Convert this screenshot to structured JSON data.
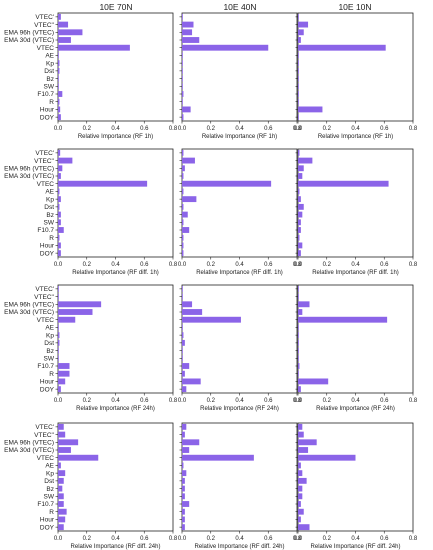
{
  "colors": {
    "bar": "#8b64e8",
    "axis": "#222222"
  },
  "column_titles": [
    "10E 70N",
    "10E 40N",
    "10E 10N"
  ],
  "x_ticks": [
    "0.0",
    "0.2",
    "0.4",
    "0.6",
    "0.8"
  ],
  "chart_data": [
    {
      "type": "bar",
      "orientation": "horizontal",
      "row_xlabel": "Relative Importance (RF 1h)",
      "xlim": [
        0,
        0.8
      ],
      "features": [
        "VTEC'",
        "VTEC''",
        "EMA 96h (VTEC)",
        "EMA 30d (VTEC)",
        "VTEC",
        "AE",
        "Kp",
        "Dst",
        "Bz",
        "SW",
        "F10.7",
        "R",
        "Hour",
        "DOY"
      ],
      "panels": [
        {
          "column": "10E 70N",
          "values": [
            0.02,
            0.07,
            0.17,
            0.09,
            0.5,
            0.005,
            0.01,
            0.01,
            0.005,
            0.005,
            0.03,
            0.01,
            0.015,
            0.02
          ]
        },
        {
          "column": "10E 40N",
          "values": [
            0.005,
            0.08,
            0.07,
            0.12,
            0.6,
            0.005,
            0.005,
            0.005,
            0.005,
            0.005,
            0.01,
            0.005,
            0.06,
            0.01
          ]
        },
        {
          "column": "10E 10N",
          "values": [
            0.005,
            0.07,
            0.04,
            0.02,
            0.61,
            0.005,
            0.005,
            0.005,
            0.005,
            0.005,
            0.005,
            0.005,
            0.17,
            0.005
          ]
        }
      ]
    },
    {
      "type": "bar",
      "orientation": "horizontal",
      "row_xlabel": "Relative Importance (RF diff. 1h)",
      "xlim": [
        0,
        0.8
      ],
      "features": [
        "VTEC'",
        "VTEC''",
        "EMA 96h (VTEC)",
        "EMA 30d (VTEC)",
        "VTEC",
        "AE",
        "Kp",
        "Dst",
        "Bz",
        "SW",
        "F10.7",
        "R",
        "Hour",
        "DOY"
      ],
      "panels": [
        {
          "column": "10E 70N",
          "values": [
            0.015,
            0.1,
            0.03,
            0.02,
            0.62,
            0.01,
            0.02,
            0.01,
            0.02,
            0.02,
            0.04,
            0.01,
            0.02,
            0.02
          ]
        },
        {
          "column": "10E 40N",
          "values": [
            0.01,
            0.09,
            0.02,
            0.01,
            0.62,
            0.01,
            0.1,
            0.01,
            0.04,
            0.01,
            0.05,
            0.01,
            0.01,
            0.01
          ]
        },
        {
          "column": "10E 10N",
          "values": [
            0.01,
            0.1,
            0.04,
            0.03,
            0.63,
            0.01,
            0.02,
            0.04,
            0.03,
            0.02,
            0.02,
            0.01,
            0.03,
            0.02
          ]
        }
      ]
    },
    {
      "type": "bar",
      "orientation": "horizontal",
      "row_xlabel": "Relative Importance (RF 24h)",
      "xlim": [
        0,
        0.8
      ],
      "features": [
        "VTEC'",
        "VTEC''",
        "EMA 96h (VTEC)",
        "EMA 30d (VTEC)",
        "VTEC",
        "AE",
        "Kp",
        "Dst",
        "Bz",
        "SW",
        "F10.7",
        "R",
        "Hour",
        "DOY"
      ],
      "panels": [
        {
          "column": "10E 70N",
          "values": [
            0.005,
            0.005,
            0.3,
            0.24,
            0.12,
            0.005,
            0.01,
            0.01,
            0.005,
            0.005,
            0.08,
            0.08,
            0.05,
            0.02
          ]
        },
        {
          "column": "10E 40N",
          "values": [
            0.005,
            0.005,
            0.07,
            0.14,
            0.41,
            0.005,
            0.01,
            0.02,
            0.005,
            0.005,
            0.05,
            0.02,
            0.13,
            0.03
          ]
        },
        {
          "column": "10E 10N",
          "values": [
            0.005,
            0.005,
            0.08,
            0.03,
            0.62,
            0.005,
            0.005,
            0.005,
            0.005,
            0.005,
            0.01,
            0.005,
            0.21,
            0.02
          ]
        }
      ]
    },
    {
      "type": "bar",
      "orientation": "horizontal",
      "row_xlabel": "Relative Importance (RF diff. 24h)",
      "xlim": [
        0,
        0.8
      ],
      "features": [
        "VTEC'",
        "VTEC''",
        "EMA 96h (VTEC)",
        "EMA 30d (VTEC)",
        "VTEC",
        "AE",
        "Kp",
        "Dst",
        "Bz",
        "SW",
        "F10.7",
        "R",
        "Hour",
        "DOY"
      ],
      "panels": [
        {
          "column": "10E 70N",
          "values": [
            0.04,
            0.05,
            0.14,
            0.09,
            0.28,
            0.02,
            0.05,
            0.04,
            0.03,
            0.04,
            0.04,
            0.06,
            0.05,
            0.04
          ]
        },
        {
          "column": "10E 40N",
          "values": [
            0.03,
            0.02,
            0.12,
            0.05,
            0.5,
            0.01,
            0.03,
            0.02,
            0.02,
            0.02,
            0.05,
            0.02,
            0.02,
            0.02
          ]
        },
        {
          "column": "10E 10N",
          "values": [
            0.03,
            0.04,
            0.13,
            0.07,
            0.4,
            0.02,
            0.03,
            0.06,
            0.03,
            0.03,
            0.02,
            0.04,
            0.02,
            0.08
          ]
        }
      ]
    }
  ]
}
